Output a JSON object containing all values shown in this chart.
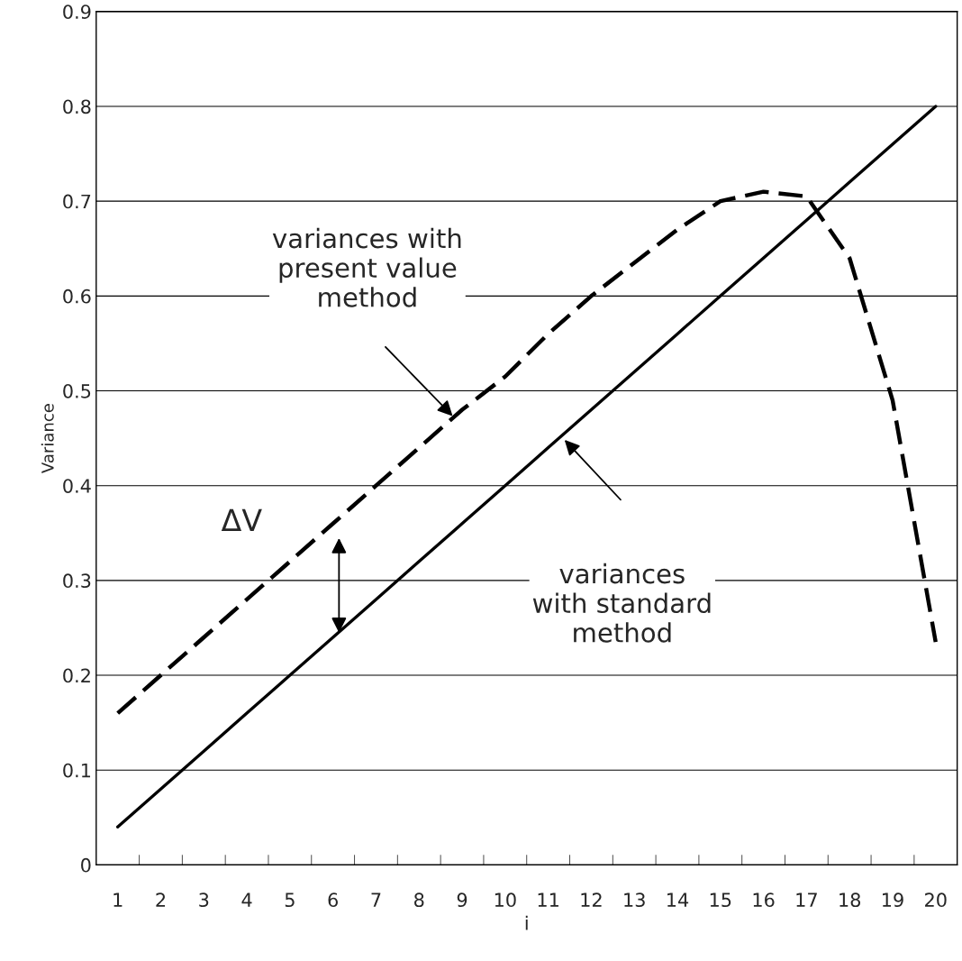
{
  "chart_data": {
    "type": "line",
    "xlabel": "i",
    "ylabel": "Variance",
    "categories": [
      "1",
      "2",
      "3",
      "4",
      "5",
      "6",
      "7",
      "8",
      "9",
      "10",
      "11",
      "12",
      "13",
      "14",
      "15",
      "16",
      "17",
      "18",
      "19",
      "20"
    ],
    "series": [
      {
        "color": "#000000",
        "line_style": "dashed",
        "values": [
          0.16,
          0.2,
          0.24,
          0.28,
          0.32,
          0.36,
          0.4,
          0.44,
          0.48,
          0.515,
          0.56,
          0.6,
          0.635,
          0.67,
          0.7,
          0.71,
          0.705,
          0.64,
          0.49,
          0.235
        ]
      },
      {
        "color": "#000000",
        "line_style": "solid",
        "values": [
          0.04,
          0.08,
          0.12,
          0.16,
          0.2,
          0.24,
          0.28,
          0.32,
          0.36,
          0.4,
          0.44,
          0.48,
          0.52,
          0.56,
          0.6,
          0.64,
          0.68,
          0.72,
          0.76,
          0.8
        ]
      }
    ],
    "ylim": [
      0,
      0.9
    ],
    "yticks": [
      0,
      0.1,
      0.2,
      0.3,
      0.4,
      0.5,
      0.6,
      0.7,
      0.8,
      0.9
    ],
    "grid": "y",
    "marker": "none",
    "legend": false,
    "annotations": [
      "variances with\npresent value\nmethod",
      "variances\nwith standard\nmethod",
      "ΔV"
    ]
  }
}
